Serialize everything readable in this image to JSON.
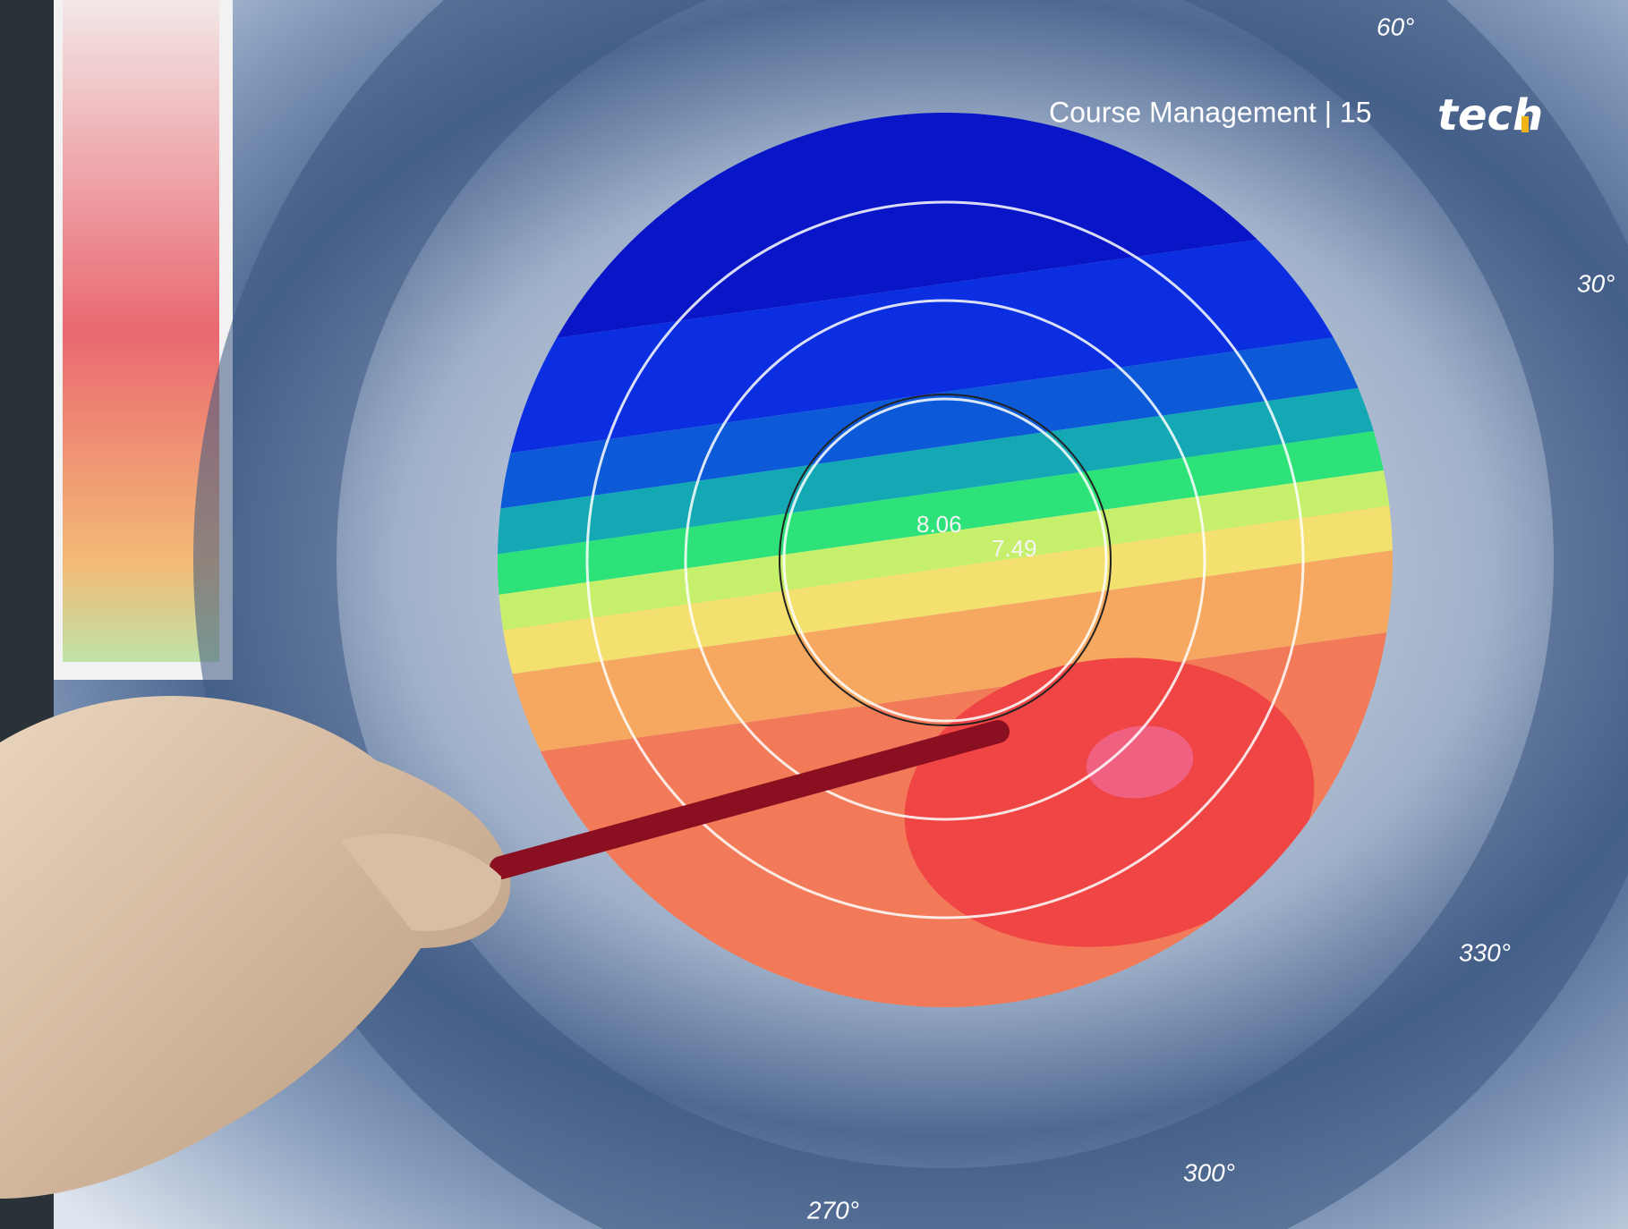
{
  "header": {
    "title": "Course Management | 15",
    "logo": "tech"
  },
  "image": {
    "angle_labels": [
      "60°",
      "30°",
      "330°",
      "300°",
      "270°"
    ],
    "map_values": [
      "8.06",
      "7.49"
    ]
  }
}
